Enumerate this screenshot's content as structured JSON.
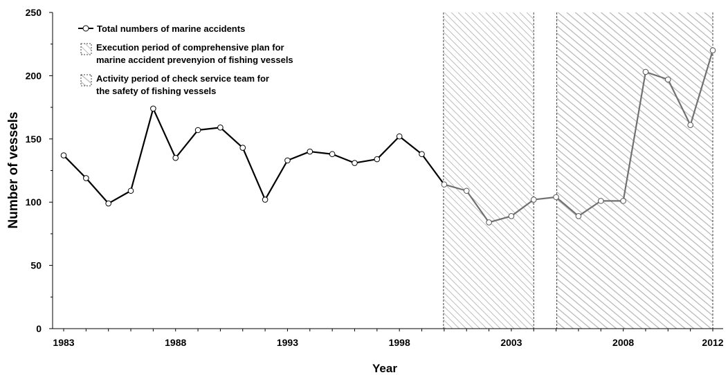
{
  "chart_data": {
    "type": "line",
    "xlabel": "Year",
    "ylabel": "Number of vessels",
    "xlim": [
      1983,
      2012
    ],
    "ylim": [
      0,
      250
    ],
    "x_ticks": [
      "1983",
      "1988",
      "1993",
      "1998",
      "2003",
      "2008",
      "2012"
    ],
    "y_ticks": [
      "0",
      "50",
      "100",
      "150",
      "200",
      "250"
    ],
    "grid": false,
    "legend_position": "top-left",
    "series": [
      {
        "name": "Total numbers of marine accidents",
        "x": [
          1983,
          1984,
          1985,
          1986,
          1987,
          1988,
          1989,
          1990,
          1991,
          1992,
          1993,
          1994,
          1995,
          1996,
          1997,
          1998,
          1999,
          2000,
          2001,
          2002,
          2003,
          2004,
          2005,
          2006,
          2007,
          2008,
          2009,
          2010,
          2011,
          2012
        ],
        "values": [
          137,
          119,
          99,
          109,
          174,
          135,
          157,
          159,
          143,
          102,
          133,
          140,
          138,
          131,
          134,
          152,
          138,
          114,
          109,
          84,
          89,
          102,
          104,
          89,
          101,
          101,
          203,
          197,
          161,
          220
        ]
      }
    ],
    "shaded_periods": [
      {
        "label_lines": [
          "Execution period of comprehensive plan for",
          "marine accident prevenyion of fishing vessels"
        ],
        "start": 2000,
        "end": 2004
      },
      {
        "label_lines": [
          "Activity period of check service team for",
          "the safety of fishing vessels"
        ],
        "start": 2005,
        "end": 2012
      }
    ],
    "colors": {
      "line_before": "#000000",
      "line_after": "#707070",
      "marker_fill": "#ffffff",
      "hatch": "#b8b8b8",
      "border": "#404040"
    }
  }
}
